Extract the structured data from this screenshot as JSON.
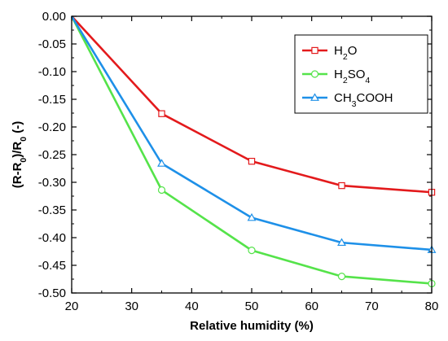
{
  "chart_data": {
    "type": "line",
    "xlabel": "Relative humidity (%)",
    "ylabel": {
      "parts": [
        {
          "t": "(R-R",
          "sub": false
        },
        {
          "t": "0",
          "sub": true
        },
        {
          "t": ")/R",
          "sub": false
        },
        {
          "t": "0",
          "sub": true
        },
        {
          "t": " (-)",
          "sub": false
        }
      ]
    },
    "xlim": [
      20,
      80
    ],
    "ylim": [
      -0.5,
      0.0
    ],
    "xticks": [
      20,
      30,
      40,
      50,
      60,
      70,
      80
    ],
    "yticks": [
      0.0,
      -0.05,
      -0.1,
      -0.15,
      -0.2,
      -0.25,
      -0.3,
      -0.35,
      -0.4,
      -0.45,
      -0.5
    ],
    "ytick_labels": [
      "0.00",
      "-0.05",
      "-0.10",
      "-0.15",
      "-0.20",
      "-0.25",
      "-0.30",
      "-0.35",
      "-0.40",
      "-0.45",
      "-0.50"
    ],
    "grid": false,
    "legend_position": "top-right",
    "series": [
      {
        "name": "H2O",
        "name_parts": [
          {
            "t": "H",
            "sub": false
          },
          {
            "t": "2",
            "sub": true
          },
          {
            "t": "O",
            "sub": false
          }
        ],
        "color": "#e31a1c",
        "marker": "square",
        "x": [
          20,
          35,
          50,
          65,
          80
        ],
        "y": [
          0.0,
          -0.176,
          -0.262,
          -0.306,
          -0.318
        ]
      },
      {
        "name": "H2SO4",
        "name_parts": [
          {
            "t": "H",
            "sub": false
          },
          {
            "t": "2",
            "sub": true
          },
          {
            "t": "SO",
            "sub": false
          },
          {
            "t": "4",
            "sub": true
          }
        ],
        "color": "#55e34a",
        "marker": "circle",
        "x": [
          20,
          35,
          50,
          65,
          80
        ],
        "y": [
          0.0,
          -0.314,
          -0.423,
          -0.47,
          -0.483
        ]
      },
      {
        "name": "CH3COOH",
        "name_parts": [
          {
            "t": "CH",
            "sub": false
          },
          {
            "t": "3",
            "sub": true
          },
          {
            "t": "COOH",
            "sub": false
          }
        ],
        "color": "#1e90e8",
        "marker": "triangle",
        "x": [
          20,
          35,
          50,
          65,
          80
        ],
        "y": [
          0.0,
          -0.266,
          -0.364,
          -0.409,
          -0.422
        ]
      }
    ]
  }
}
